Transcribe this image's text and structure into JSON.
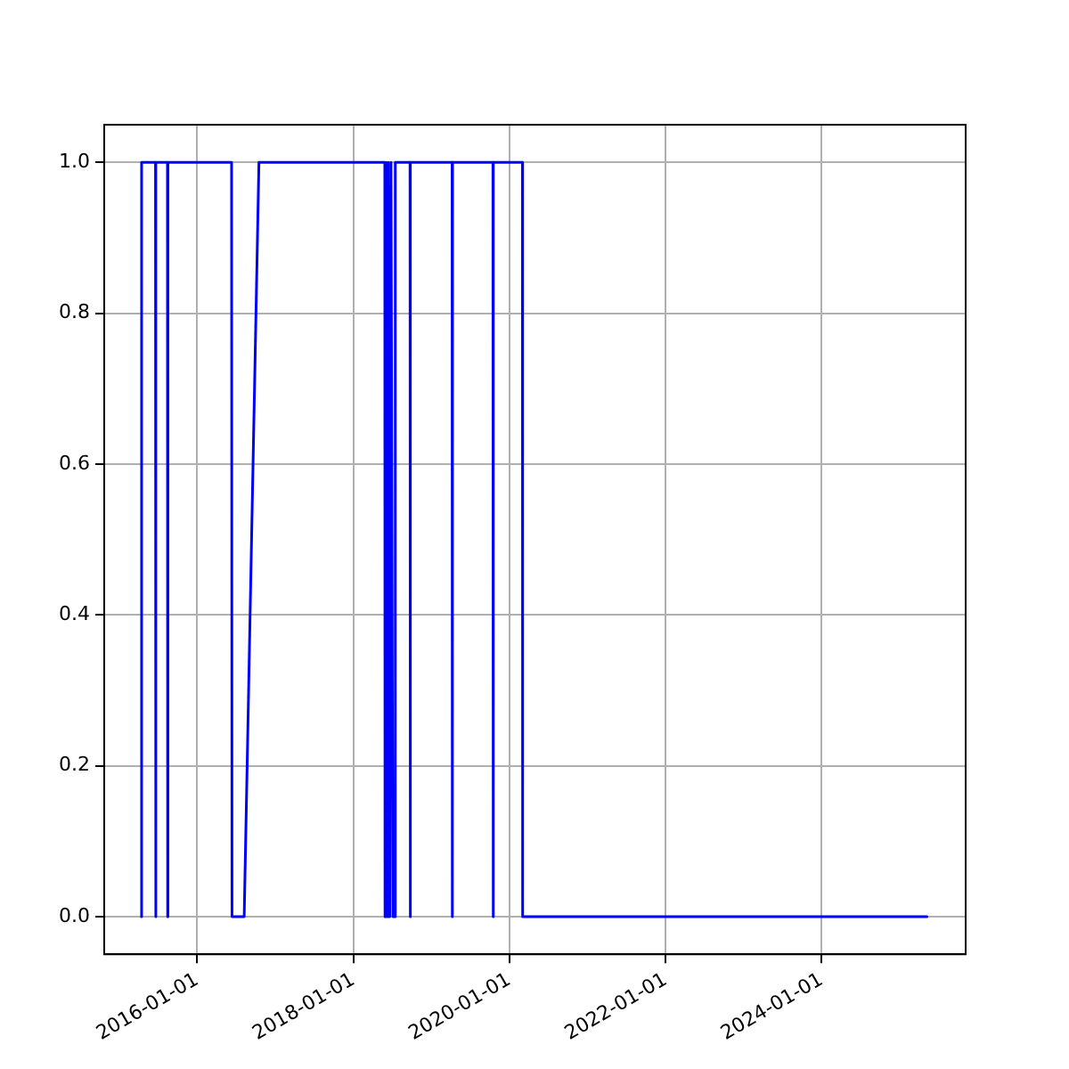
{
  "chart_data": {
    "type": "line",
    "x": [
      "2015-04-15",
      "2015-04-16",
      "2015-06-20",
      "2015-06-21",
      "2015-06-22",
      "2015-08-15",
      "2015-08-16",
      "2015-08-17",
      "2016-06-10",
      "2016-06-12",
      "2016-08-08",
      "2016-10-16",
      "2018-05-28",
      "2018-05-29",
      "2018-06-03",
      "2018-06-08",
      "2018-06-13",
      "2018-06-20",
      "2018-06-26",
      "2018-07-05",
      "2018-07-15",
      "2018-07-16",
      "2018-09-23",
      "2018-09-24",
      "2018-09-25",
      "2019-04-08",
      "2019-04-09",
      "2019-04-10",
      "2019-10-16",
      "2019-10-17",
      "2019-10-18",
      "2020-03-02",
      "2020-03-03",
      "2025-05-08"
    ],
    "series": [
      {
        "color": "#0000ff",
        "values": [
          0,
          1,
          1,
          0,
          1,
          1,
          0,
          1,
          1,
          0,
          0,
          1,
          1,
          0,
          1,
          0,
          1,
          0,
          1,
          0,
          0,
          1,
          1,
          0,
          1,
          1,
          0,
          1,
          1,
          0,
          1,
          1,
          0,
          0
        ]
      }
    ],
    "xlim": [
      "2014-10-23",
      "2025-11-05"
    ],
    "xticks": [
      "2016-01-01",
      "2018-01-01",
      "2020-01-01",
      "2022-01-01",
      "2024-01-01"
    ],
    "ylim": [
      -0.05,
      1.05
    ],
    "yticks": [
      {
        "value": 0,
        "label": "0.0"
      },
      {
        "value": 0.2,
        "label": "0.2"
      },
      {
        "value": 0.4,
        "label": "0.4"
      },
      {
        "value": 0.6,
        "label": "0.6"
      },
      {
        "value": 0.8,
        "label": "0.8"
      },
      {
        "value": 1,
        "label": "1.0"
      }
    ],
    "grid": true,
    "marker": "none",
    "line_style": "solid",
    "legend": false
  }
}
